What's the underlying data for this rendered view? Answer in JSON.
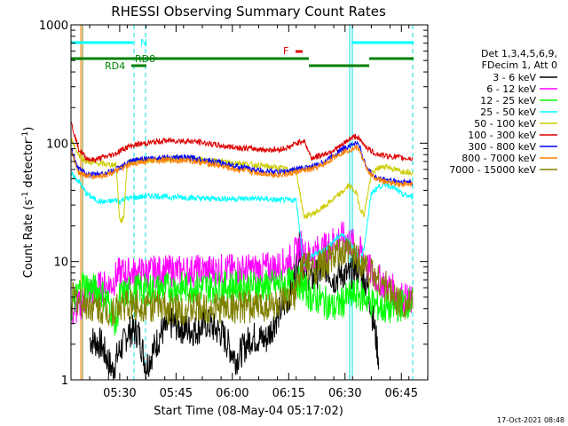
{
  "chart_data": {
    "type": "line",
    "title": "RHESSI Observing Summary Count Rates",
    "xlabel": "Start Time (08-May-04 05:17:02)",
    "ylabel_parts": [
      "Count Rate (s",
      "-1",
      " detector",
      "-1",
      ")"
    ],
    "yscale": "log",
    "ylim": [
      1,
      1000
    ],
    "y_ticks": [
      {
        "value": 1,
        "label": "1"
      },
      {
        "value": 10,
        "label": "10"
      },
      {
        "value": 100,
        "label": "100"
      },
      {
        "value": 1000,
        "label": "1000"
      }
    ],
    "xlim_minutes": [
      0,
      95
    ],
    "x_ticks": [
      {
        "minute": 12.97,
        "label": "05:30"
      },
      {
        "minute": 27.97,
        "label": "05:45"
      },
      {
        "minute": 42.97,
        "label": "06:00"
      },
      {
        "minute": 57.97,
        "label": "06:15"
      },
      {
        "minute": 72.97,
        "label": "06:30"
      },
      {
        "minute": 87.97,
        "label": "06:45"
      }
    ],
    "legend_header": [
      "Det 1,3,4,5,6,9,",
      "FDecim 1, Att 0"
    ],
    "series": [
      {
        "name": "3 - 6 keV",
        "color": "#000000",
        "x": [
          5,
          8,
          11,
          13,
          14,
          15,
          16,
          18,
          20,
          22,
          24,
          27,
          30,
          33,
          36,
          40,
          44,
          48,
          52,
          55,
          58,
          60,
          61,
          62,
          63,
          64,
          66,
          68,
          70,
          72,
          74,
          76,
          78,
          79,
          80,
          81,
          82
        ],
        "y": [
          2.2,
          2.0,
          1.2,
          1.8,
          2.0,
          2.5,
          2.6,
          2.5,
          1.3,
          1.8,
          2.5,
          3.0,
          2.7,
          2.6,
          3.0,
          2.5,
          1.5,
          2.3,
          2.2,
          3.5,
          5.0,
          9.0,
          14,
          10,
          8,
          7,
          8,
          9,
          7,
          8,
          7.5,
          9,
          7,
          6,
          4,
          2.5,
          1.5
        ]
      },
      {
        "name": "6 - 12 keV",
        "color": "#ff00ff",
        "x": [
          0,
          3,
          5,
          7,
          9,
          11,
          12,
          13,
          15,
          18,
          22,
          26,
          30,
          35,
          40,
          45,
          50,
          55,
          58,
          60,
          61,
          62,
          63,
          65,
          68,
          70,
          72,
          74,
          76,
          78,
          79,
          80,
          82,
          85,
          88,
          91
        ],
        "y": [
          3.5,
          4.5,
          5.5,
          6.0,
          6.2,
          6.5,
          7.5,
          8.0,
          8.0,
          8.0,
          8.2,
          8.3,
          8.3,
          8.4,
          8.5,
          8.5,
          8.6,
          9.0,
          10,
          12,
          14,
          11.5,
          11,
          12,
          13,
          15,
          16,
          15,
          13,
          11,
          9,
          8,
          7,
          6,
          5,
          4.5
        ]
      },
      {
        "name": "12 - 25 keV",
        "color": "#00ff00",
        "x": [
          0,
          3,
          5,
          8,
          10,
          12,
          13,
          15,
          18,
          22,
          26,
          30,
          35,
          40,
          45,
          50,
          55,
          58,
          60,
          62,
          64,
          66,
          68,
          70,
          72,
          74,
          76,
          78,
          80,
          83,
          86,
          89,
          91
        ],
        "y": [
          4.0,
          6.5,
          6.0,
          5.5,
          4.5,
          3.0,
          5.0,
          5.5,
          5.8,
          5.8,
          6.0,
          6.0,
          6.1,
          6.1,
          6.2,
          6.2,
          6.3,
          6.5,
          7.0,
          6.0,
          5.0,
          4.8,
          4.5,
          4.0,
          4.5,
          5.0,
          5.3,
          5.0,
          4.5,
          4.0,
          4.0,
          4.5,
          4.5
        ]
      },
      {
        "name": "25 - 50 keV",
        "color": "#00ffff",
        "x": [
          0,
          2,
          4,
          6,
          8,
          10,
          12,
          13,
          14,
          15,
          18,
          22,
          26,
          30,
          35,
          40,
          45,
          50,
          55,
          58,
          60,
          62,
          64,
          66,
          68,
          70,
          72,
          74,
          76,
          77,
          78,
          80,
          82,
          84,
          86,
          88,
          91
        ],
        "y": [
          55,
          48,
          38,
          34,
          32,
          32,
          33,
          32,
          34,
          34,
          35,
          36,
          35,
          35,
          34,
          34,
          34,
          34,
          33,
          33,
          33,
          9,
          11,
          12,
          13,
          15,
          17,
          15,
          12,
          10,
          13,
          38,
          43,
          45,
          42,
          37,
          35
        ]
      },
      {
        "name": "50 - 100 keV",
        "color": "#cccc00",
        "x": [
          0,
          2,
          4,
          6,
          8,
          10,
          12,
          13,
          14,
          15,
          18,
          22,
          26,
          30,
          35,
          40,
          45,
          50,
          55,
          58,
          60,
          62,
          64,
          66,
          68,
          70,
          72,
          74,
          76,
          77,
          78,
          80,
          82,
          84,
          86,
          88,
          91
        ],
        "y": [
          110,
          80,
          70,
          68,
          67,
          66,
          66,
          22,
          23,
          70,
          72,
          72,
          73,
          75,
          72,
          70,
          68,
          65,
          62,
          60,
          58,
          24,
          25,
          27,
          30,
          34,
          38,
          44,
          38,
          28,
          25,
          55,
          62,
          64,
          60,
          58,
          57
        ]
      },
      {
        "name": "100 - 300 keV",
        "color": "#dd0000",
        "x": [
          0,
          2,
          4,
          6,
          8,
          10,
          12,
          14,
          16,
          18,
          20,
          22,
          25,
          28,
          32,
          36,
          40,
          44,
          48,
          52,
          55,
          58,
          60,
          62,
          64,
          66,
          68,
          70,
          72,
          74,
          76,
          77,
          78,
          80,
          82,
          84,
          86,
          88,
          91
        ],
        "y": [
          150,
          90,
          75,
          72,
          75,
          78,
          82,
          90,
          95,
          98,
          100,
          102,
          105,
          105,
          104,
          100,
          95,
          92,
          90,
          88,
          88,
          92,
          100,
          106,
          75,
          78,
          82,
          88,
          95,
          108,
          115,
          105,
          98,
          85,
          80,
          78,
          77,
          75,
          74
        ]
      },
      {
        "name": "300 - 800 keV",
        "color": "#0000ff",
        "x": [
          0,
          2,
          4,
          6,
          8,
          10,
          12,
          14,
          16,
          18,
          20,
          22,
          25,
          28,
          32,
          36,
          40,
          44,
          48,
          52,
          55,
          58,
          60,
          62,
          64,
          66,
          68,
          70,
          72,
          74,
          76,
          77,
          78,
          80,
          82,
          84,
          86,
          88,
          91
        ],
        "y": [
          90,
          60,
          55,
          54,
          55,
          57,
          60,
          65,
          70,
          73,
          74,
          75,
          76,
          76,
          75,
          72,
          68,
          64,
          60,
          58,
          57,
          58,
          60,
          62,
          63,
          66,
          72,
          80,
          88,
          95,
          100,
          92,
          70,
          55,
          50,
          49,
          48,
          47,
          47
        ]
      },
      {
        "name": "800 - 7000 keV",
        "color": "#ff8000",
        "x": [
          0,
          2,
          4,
          6,
          8,
          10,
          12,
          14,
          16,
          18,
          20,
          22,
          25,
          28,
          32,
          36,
          40,
          44,
          48,
          52,
          55,
          58,
          60,
          62,
          64,
          66,
          68,
          70,
          72,
          74,
          76,
          77,
          78,
          80,
          82,
          84,
          86,
          88,
          91
        ],
        "y": [
          85,
          57,
          53,
          52,
          53,
          55,
          58,
          62,
          66,
          69,
          70,
          71,
          72,
          72,
          71,
          68,
          64,
          60,
          57,
          55,
          54,
          55,
          57,
          59,
          60,
          63,
          68,
          76,
          83,
          88,
          92,
          86,
          68,
          53,
          49,
          47,
          46,
          45,
          45
        ]
      },
      {
        "name": "7000 - 15000 keV",
        "color": "#808000",
        "x": [
          0,
          3,
          5,
          8,
          10,
          12,
          13,
          15,
          18,
          22,
          26,
          30,
          35,
          40,
          45,
          50,
          55,
          58,
          60,
          61,
          62,
          64,
          66,
          68,
          70,
          72,
          74,
          76,
          78,
          80,
          82,
          84,
          86,
          88,
          91
        ],
        "y": [
          5.0,
          4.5,
          4.2,
          4.0,
          3.8,
          4.0,
          4.2,
          4.3,
          4.3,
          4.2,
          4.0,
          4.0,
          4.0,
          4.1,
          4.1,
          4.2,
          4.3,
          4.6,
          5.5,
          8.0,
          10,
          8.5,
          9.0,
          10,
          11,
          11.5,
          12,
          11,
          9.5,
          8,
          7,
          6,
          5,
          4.5,
          4.2
        ]
      }
    ],
    "annotations": [
      {
        "text": "N",
        "color": "#00ffff"
      },
      {
        "text": "RD8",
        "color": "#008000"
      },
      {
        "text": "RD4",
        "color": "#008000"
      },
      {
        "text": "F",
        "color": "#dd0000"
      }
    ],
    "timestamp": "17-Oct-2021 08:48"
  }
}
